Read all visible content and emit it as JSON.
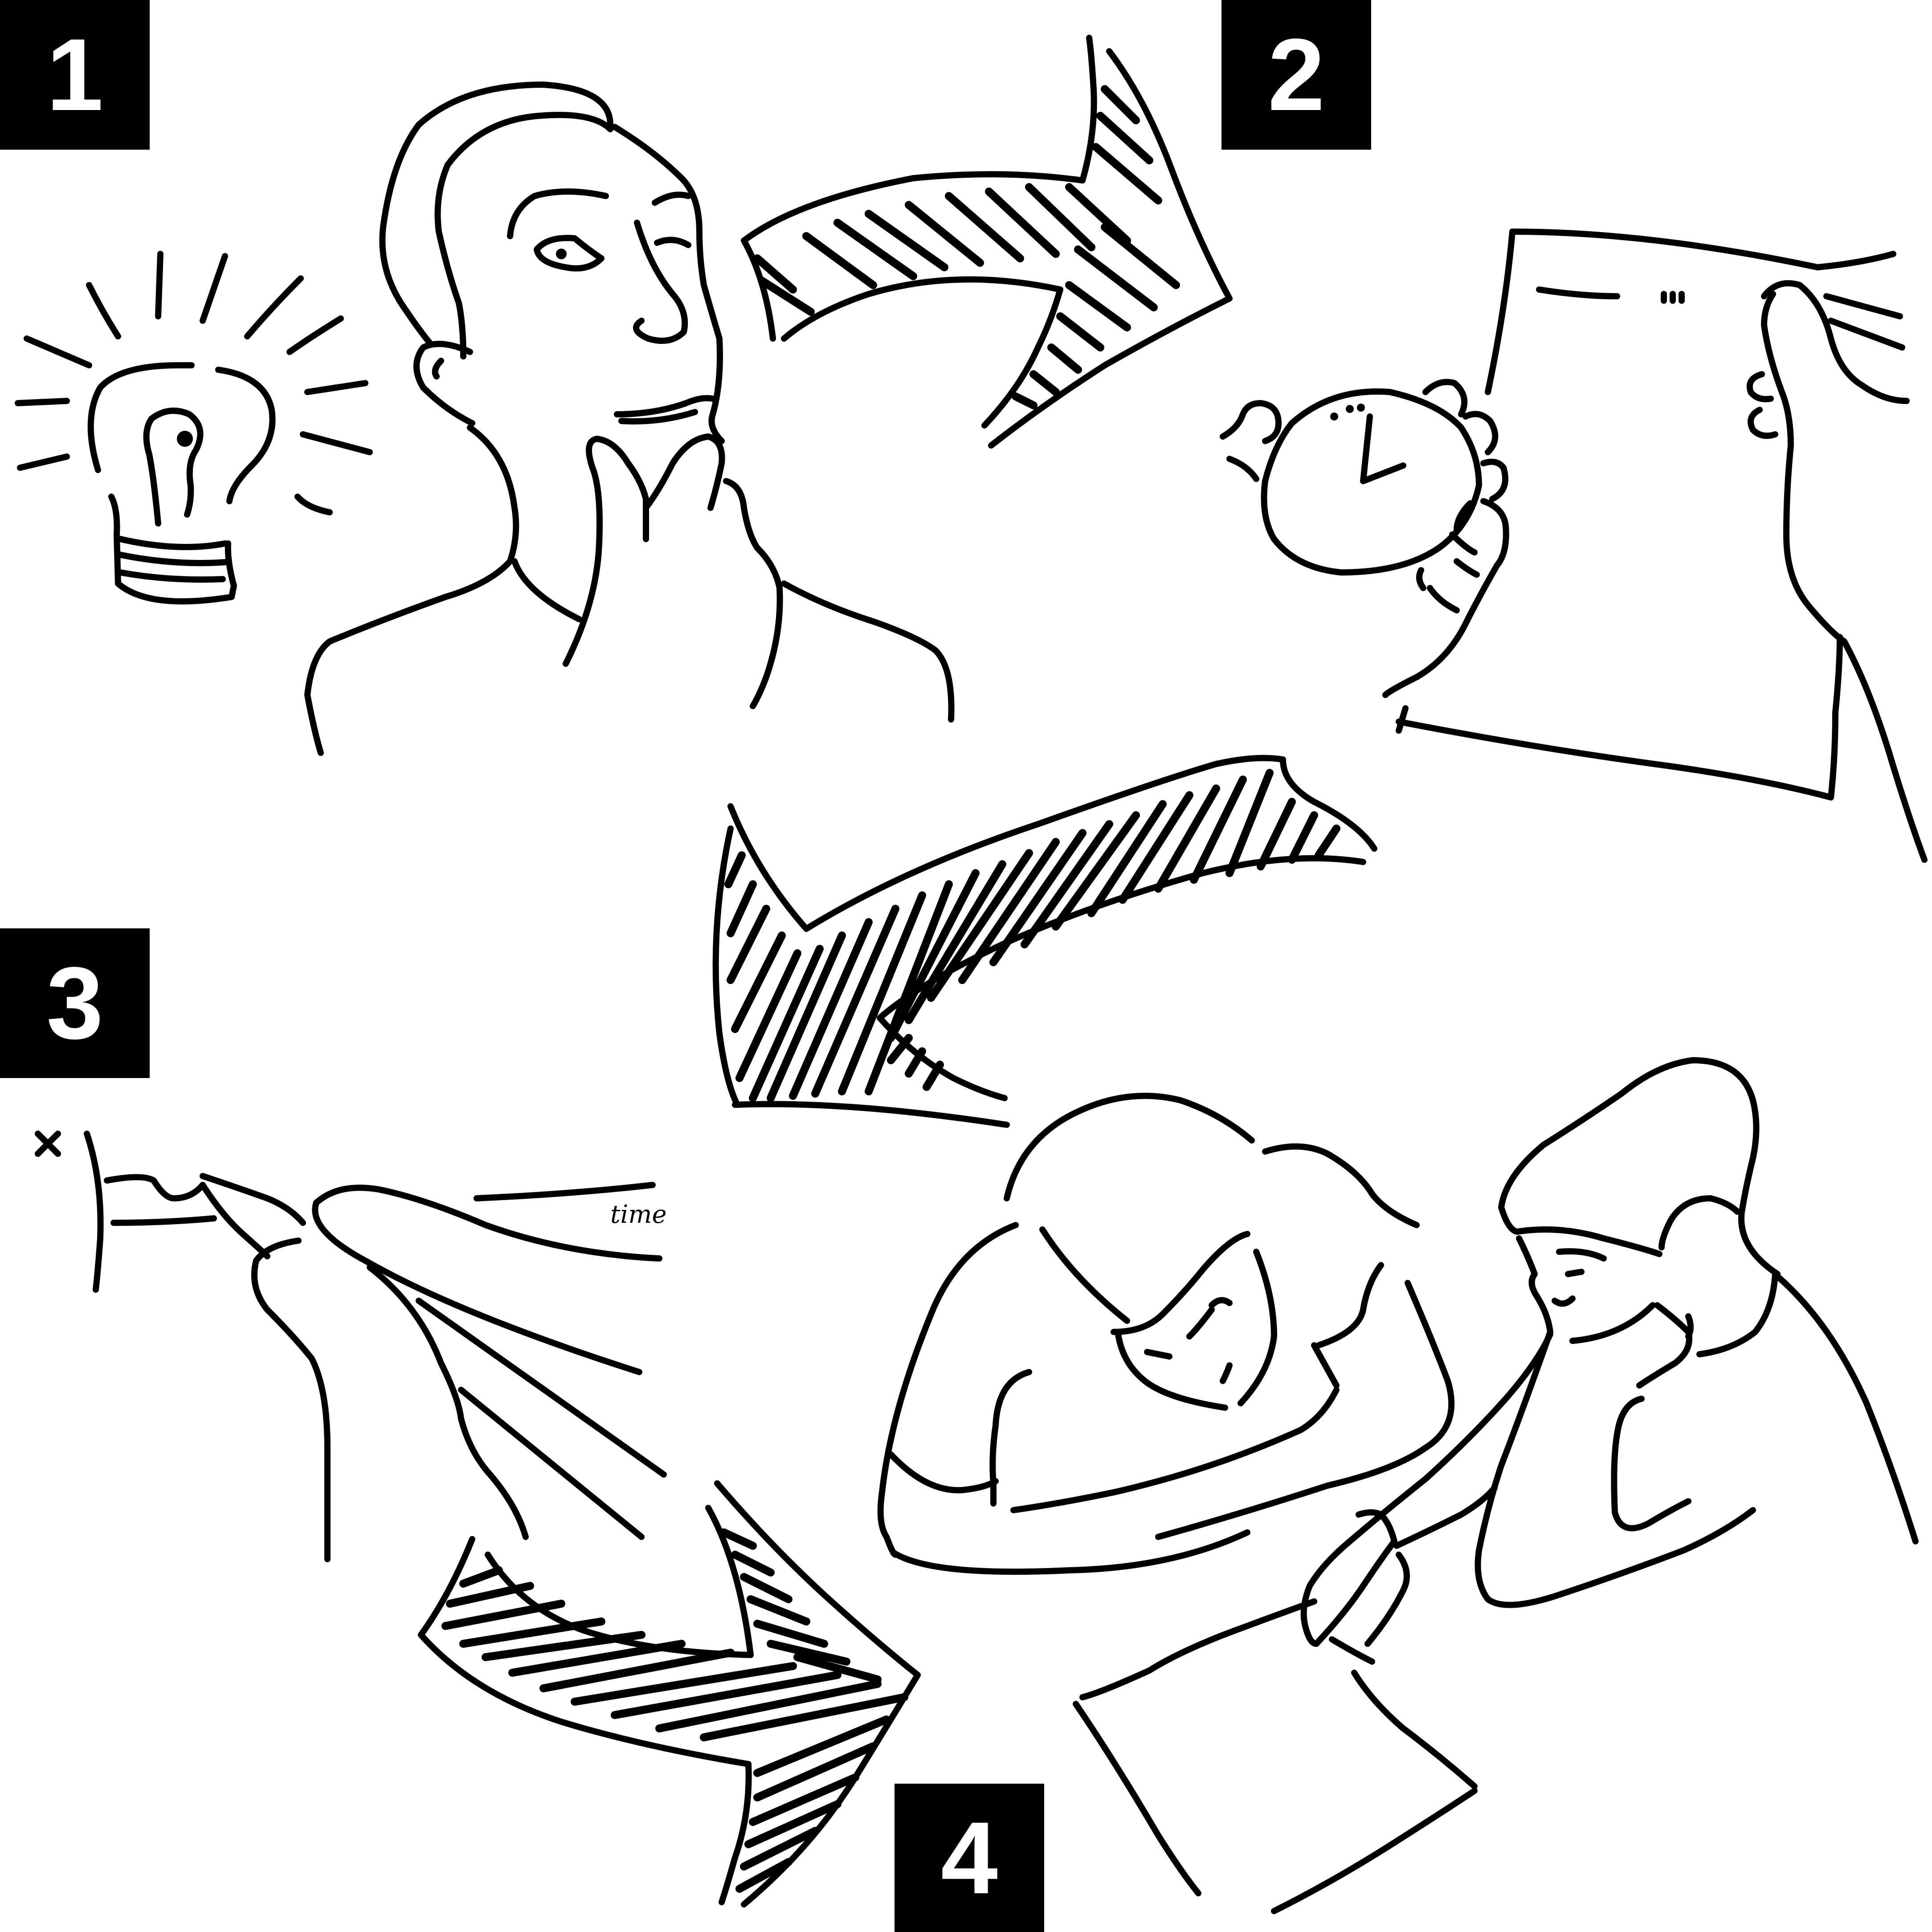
{
  "steps": [
    {
      "number": "1",
      "illustration": "idea-lightbulb-thinking-man"
    },
    {
      "number": "2",
      "illustration": "stopwatch-and-document"
    },
    {
      "number": "3",
      "illustration": "pen-writing-on-line"
    },
    {
      "number": "4",
      "illustration": "two-people-reviewing-paper"
    }
  ],
  "handwritten_word": "time",
  "colors": {
    "ink": "#000000",
    "paper": "#ffffff",
    "badge_text": "#ffffff"
  },
  "icons": [
    "lightbulb-icon",
    "stopwatch-icon",
    "pen-icon",
    "document-icon",
    "arrow-icon"
  ]
}
